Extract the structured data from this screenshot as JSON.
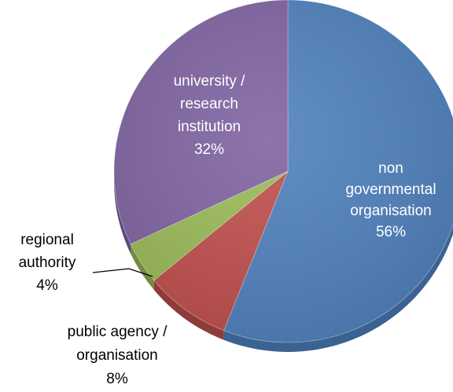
{
  "chart_data": {
    "type": "pie",
    "style": "3d-tilted",
    "slices": [
      {
        "label_lines": [
          "non",
          "governmental",
          "organisation"
        ],
        "value_label": "56%",
        "value": 56,
        "color": "#4F81BD",
        "shade": "#3A6391",
        "label_color": "#ffffff"
      },
      {
        "label_lines": [
          "public agency /",
          "organisation"
        ],
        "value_label": "8%",
        "value": 8,
        "color": "#C0504D",
        "shade": "#8E3B39",
        "label_color": "#000000"
      },
      {
        "label_lines": [
          "regional",
          "authority"
        ],
        "value_label": "4%",
        "value": 4,
        "color": "#9BBB59",
        "shade": "#728A42",
        "label_color": "#000000"
      },
      {
        "label_lines": [
          "university /",
          "research",
          "institution"
        ],
        "value_label": "32%",
        "value": 32,
        "color": "#8064A2",
        "shade": "#5E4A78",
        "label_color": "#ffffff"
      }
    ],
    "legend": "none"
  }
}
